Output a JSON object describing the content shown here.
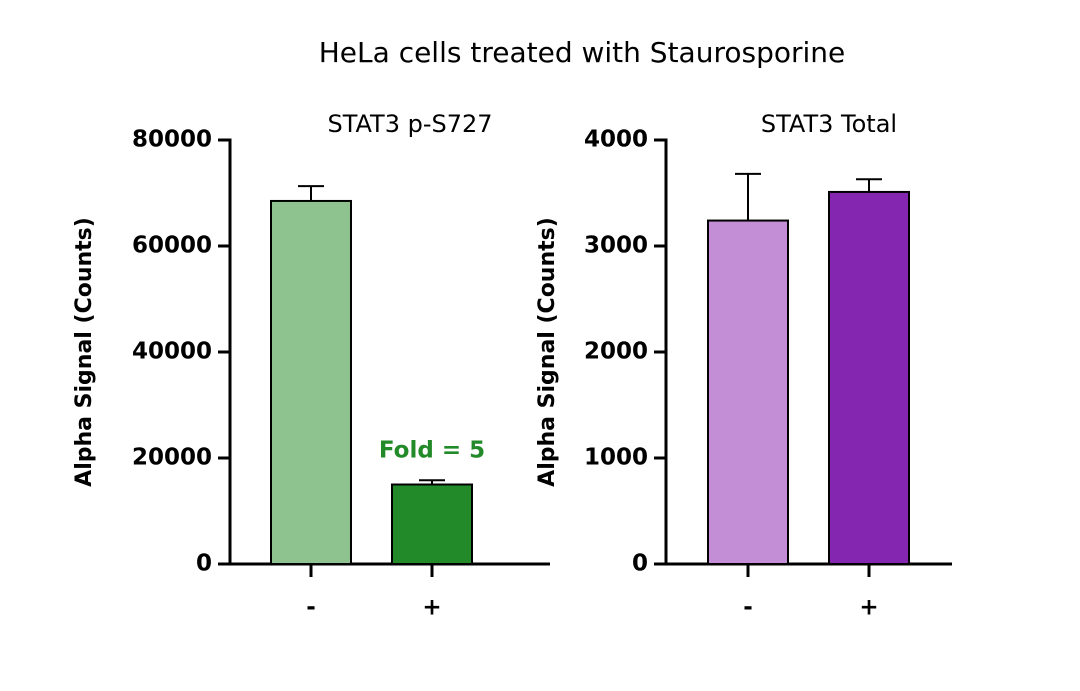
{
  "title": "HeLa cells treated with Staurosporine",
  "chart_data": [
    {
      "type": "bar",
      "title": "STAT3 p-S727",
      "y_label": "Alpha Signal (Counts)",
      "categories": [
        "-",
        "+"
      ],
      "values": [
        68500,
        15000
      ],
      "errors": [
        2800,
        800
      ],
      "colors": [
        "#8ec38f",
        "#238a2a"
      ],
      "ylim": [
        0,
        80000
      ],
      "yticks": [
        0,
        20000,
        40000,
        60000,
        80000
      ],
      "annotation": {
        "text": "Fold = 5",
        "color": "#238a2a"
      }
    },
    {
      "type": "bar",
      "title": "STAT3 Total",
      "y_label": "Alpha Signal (Counts)",
      "categories": [
        "-",
        "+"
      ],
      "values": [
        3240,
        3510
      ],
      "errors": [
        440,
        120
      ],
      "colors": [
        "#c38ed6",
        "#8526b0"
      ],
      "ylim": [
        0,
        4000
      ],
      "yticks": [
        0,
        1000,
        2000,
        3000,
        4000
      ]
    }
  ]
}
